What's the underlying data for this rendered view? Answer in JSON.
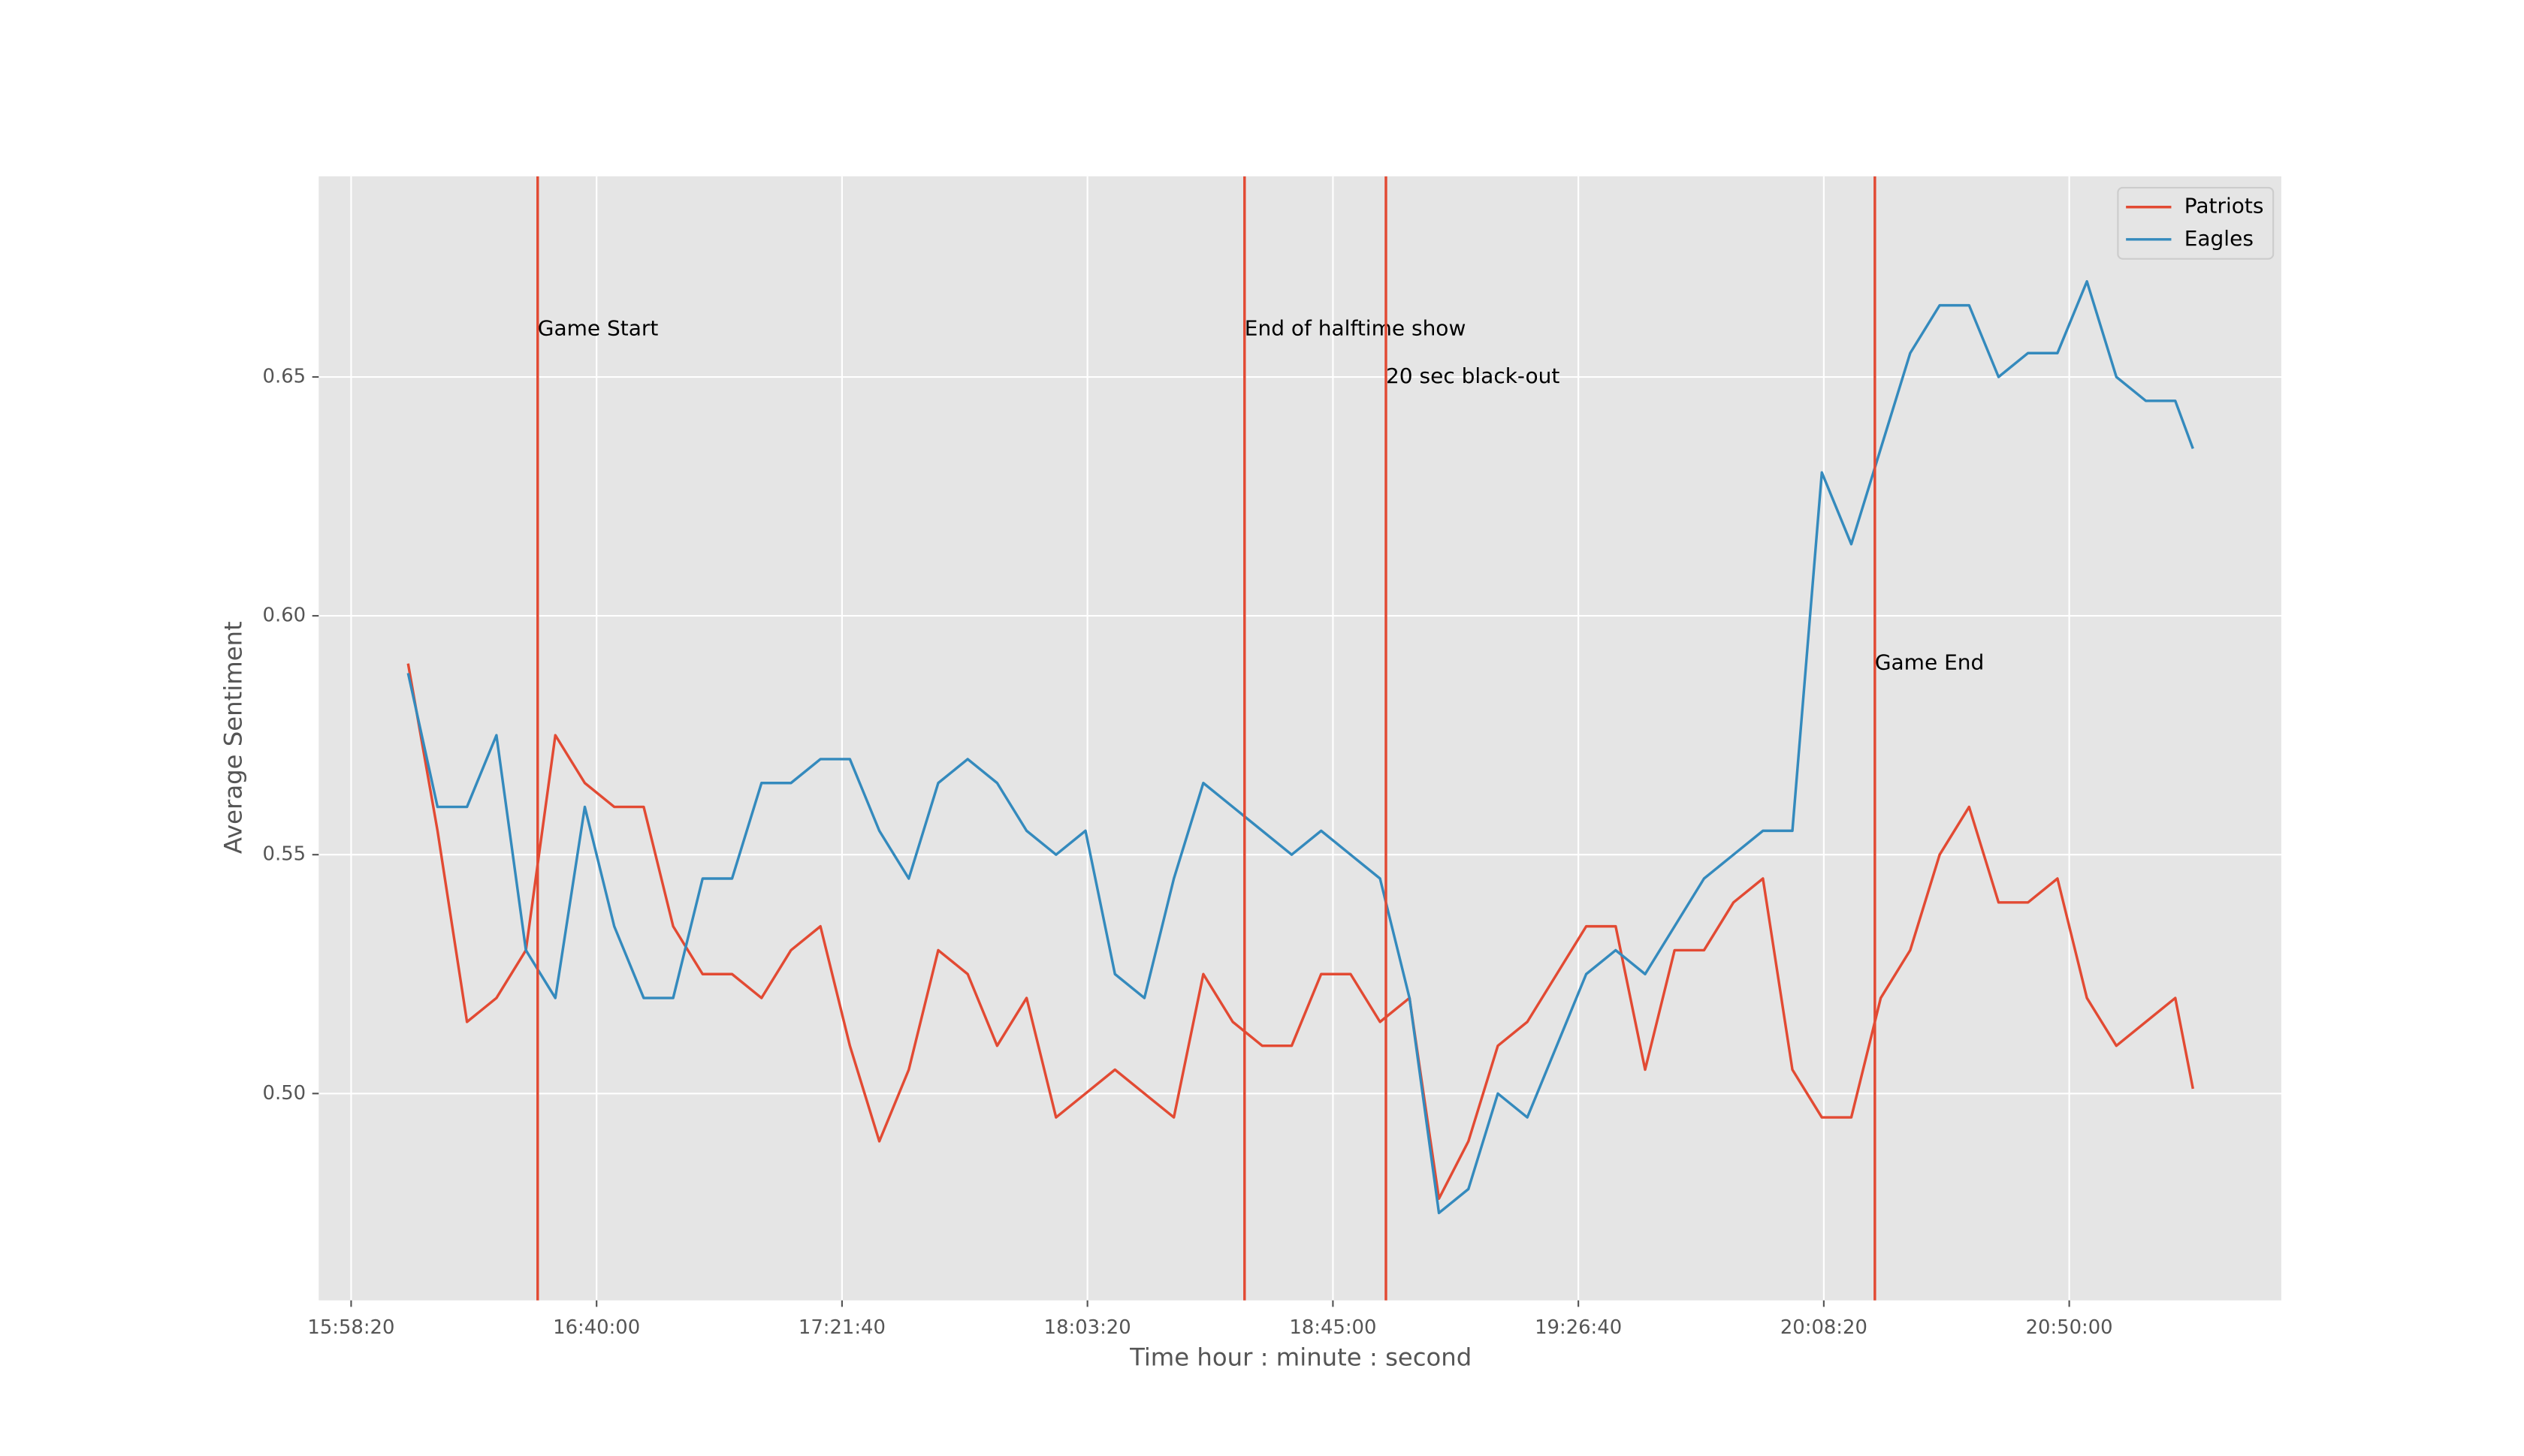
{
  "chart_data": {
    "type": "line",
    "xlabel": "Time hour : minute : second",
    "ylabel": "Average Sentiment",
    "x": [
      "16:08:00",
      "16:13:00",
      "16:18:00",
      "16:23:00",
      "16:28:00",
      "16:33:00",
      "16:38:00",
      "16:43:00",
      "16:48:00",
      "16:53:00",
      "16:58:00",
      "17:03:00",
      "17:08:00",
      "17:13:00",
      "17:18:00",
      "17:23:00",
      "17:28:00",
      "17:33:00",
      "17:38:00",
      "17:43:00",
      "17:48:00",
      "17:53:00",
      "17:58:00",
      "18:03:00",
      "18:08:00",
      "18:13:00",
      "18:18:00",
      "18:23:00",
      "18:28:00",
      "18:33:00",
      "18:38:00",
      "18:43:00",
      "18:48:00",
      "18:53:00",
      "18:58:00",
      "19:03:00",
      "19:08:00",
      "19:13:00",
      "19:18:00",
      "19:23:00",
      "19:28:00",
      "19:33:00",
      "19:38:00",
      "19:43:00",
      "19:48:00",
      "19:53:00",
      "19:58:00",
      "20:03:00",
      "20:08:00",
      "20:13:00",
      "20:18:00",
      "20:23:00",
      "20:28:00",
      "20:33:00",
      "20:38:00",
      "20:43:00",
      "20:48:00",
      "20:53:00",
      "20:58:00",
      "21:03:00",
      "21:08:00",
      "21:11:00"
    ],
    "series": [
      {
        "name": "Patriots",
        "color": "#e24a33",
        "values": [
          0.59,
          0.555,
          0.515,
          0.52,
          0.53,
          0.575,
          0.565,
          0.56,
          0.56,
          0.535,
          0.525,
          0.525,
          0.52,
          0.53,
          0.535,
          0.51,
          0.49,
          0.505,
          0.53,
          0.525,
          0.51,
          0.52,
          0.495,
          0.5,
          0.505,
          0.5,
          0.495,
          0.525,
          0.515,
          0.51,
          0.51,
          0.525,
          0.525,
          0.515,
          0.52,
          0.478,
          0.49,
          0.51,
          0.515,
          0.525,
          0.535,
          0.535,
          0.505,
          0.53,
          0.53,
          0.54,
          0.545,
          0.505,
          0.495,
          0.495,
          0.52,
          0.53,
          0.55,
          0.56,
          0.54,
          0.54,
          0.545,
          0.52,
          0.51,
          0.515,
          0.52,
          0.501
        ]
      },
      {
        "name": "Eagles",
        "color": "#348abd",
        "values": [
          0.588,
          0.56,
          0.56,
          0.575,
          0.53,
          0.52,
          0.56,
          0.535,
          0.52,
          0.52,
          0.545,
          0.545,
          0.565,
          0.565,
          0.57,
          0.57,
          0.555,
          0.545,
          0.565,
          0.57,
          0.565,
          0.555,
          0.55,
          0.555,
          0.525,
          0.52,
          0.545,
          0.565,
          0.56,
          0.555,
          0.55,
          0.555,
          0.55,
          0.545,
          0.52,
          0.475,
          0.48,
          0.5,
          0.495,
          0.51,
          0.525,
          0.53,
          0.525,
          0.535,
          0.545,
          0.55,
          0.555,
          0.555,
          0.63,
          0.615,
          0.635,
          0.655,
          0.665,
          0.665,
          0.65,
          0.655,
          0.655,
          0.67,
          0.65,
          0.645,
          0.645,
          0.635
        ]
      }
    ],
    "xlim": [
      "15:52:50",
      "21:26:00"
    ],
    "xticks": [
      "15:58:20",
      "16:40:00",
      "17:21:40",
      "18:03:20",
      "18:45:00",
      "19:26:40",
      "20:08:20",
      "20:50:00"
    ],
    "ylim": [
      0.4567,
      0.692
    ],
    "yticks": [
      {
        "value": 0.5,
        "label": "0.50"
      },
      0.55,
      {
        "value": 0.6,
        "label": "0.60"
      },
      0.65
    ],
    "grid": true,
    "legend": "upper right",
    "annotations": [
      {
        "text": "Game Start",
        "x": "16:30:00",
        "y": 0.66,
        "color": "#e24a33"
      },
      {
        "text": "End of halftime show",
        "x": "18:30:00",
        "y": 0.66,
        "color": "#e24a33"
      },
      {
        "text": "20 sec black-out",
        "x": "18:54:00",
        "y": 0.65,
        "color": "#e24a33"
      },
      {
        "text": "Game End",
        "x": "20:17:00",
        "y": 0.59,
        "color": "#e24a33"
      }
    ]
  }
}
